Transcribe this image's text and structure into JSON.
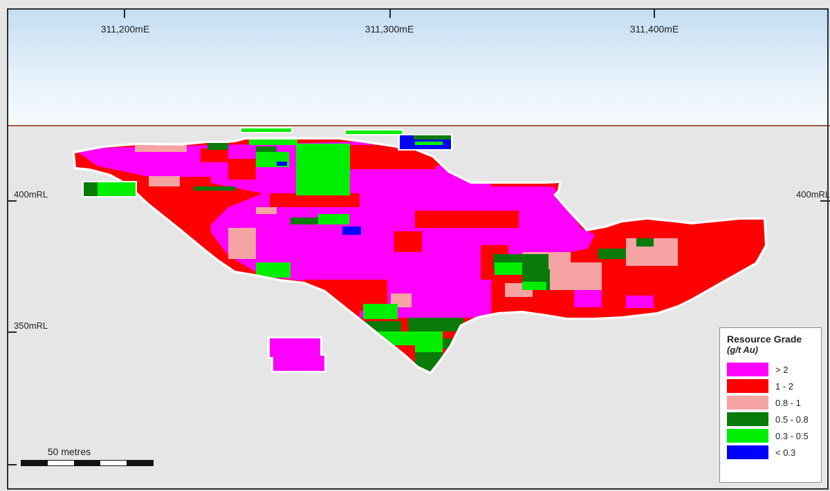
{
  "map": {
    "eastings": [
      "311,200mE",
      "311,300mE",
      "311,400mE"
    ],
    "rl_labels": {
      "rl400_left": "400mRL",
      "rl400_right": "400mRL",
      "rl350": "350mRL"
    },
    "scale": {
      "label": "50 metres"
    },
    "legend": {
      "title": "Resource Grade",
      "unit": "(g/t Au)",
      "items": [
        {
          "label": "> 2",
          "color": "#ff00ff"
        },
        {
          "label": "1 - 2",
          "color": "#ff0000"
        },
        {
          "label": "0.8 - 1",
          "color": "#f5a3a3"
        },
        {
          "label": "0.5 - 0.8",
          "color": "#0a7a0a"
        },
        {
          "label": "0.3 - 0.5",
          "color": "#00ee00"
        },
        {
          "label": "< 0.3",
          "color": "#0000ff"
        }
      ]
    }
  }
}
